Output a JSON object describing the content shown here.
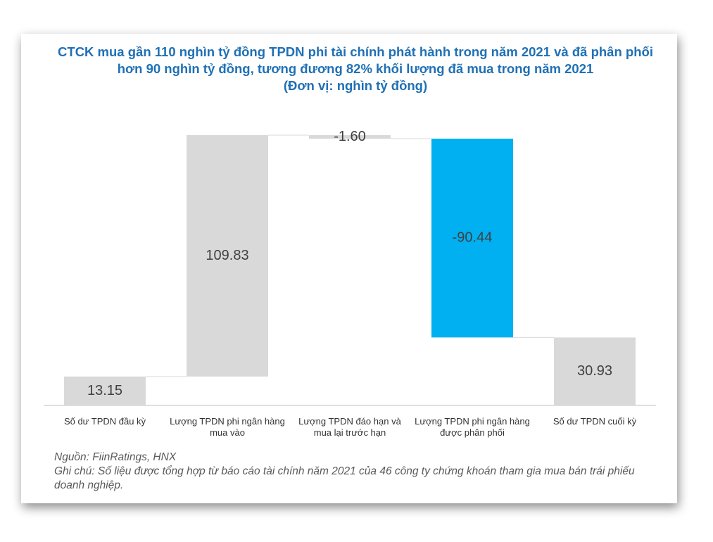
{
  "chart_data": {
    "type": "waterfall",
    "title": "CTCK mua gần 110 nghìn tỷ đồng TPDN phi tài chính phát hành trong năm 2021 và đã phân phối hơn 90 nghìn tỷ đồng, tương đương 82% khối lượng đã mua trong năm 2021",
    "subtitle": "(Đơn vị: nghìn tỷ đồng)",
    "categories": [
      "Số dư TPDN đầu kỳ",
      "Lượng TPDN phi ngân hàng mua vào",
      "Lượng TPDN đáo hạn và mua lại trước hạn",
      "Lượng TPDN phi ngân hàng được phân phối",
      "Số dư TPDN cuối kỳ"
    ],
    "values": [
      13.15,
      109.83,
      -1.6,
      -90.44,
      30.93
    ],
    "value_labels": [
      "13.15",
      "109.83",
      "-1.60",
      "-90.44",
      "30.93"
    ],
    "colors": [
      "#d9d9d9",
      "#d9d9d9",
      "#d9d9d9",
      "#00b0f0",
      "#d9d9d9"
    ],
    "source": "Nguồn: FiinRatings, HNX",
    "note": "Ghi chú: Số liệu được tổng hợp từ báo cáo tài chính năm 2021 của 46 công ty chứng khoán tham gia mua bán trái phiếu doanh nghiệp."
  }
}
